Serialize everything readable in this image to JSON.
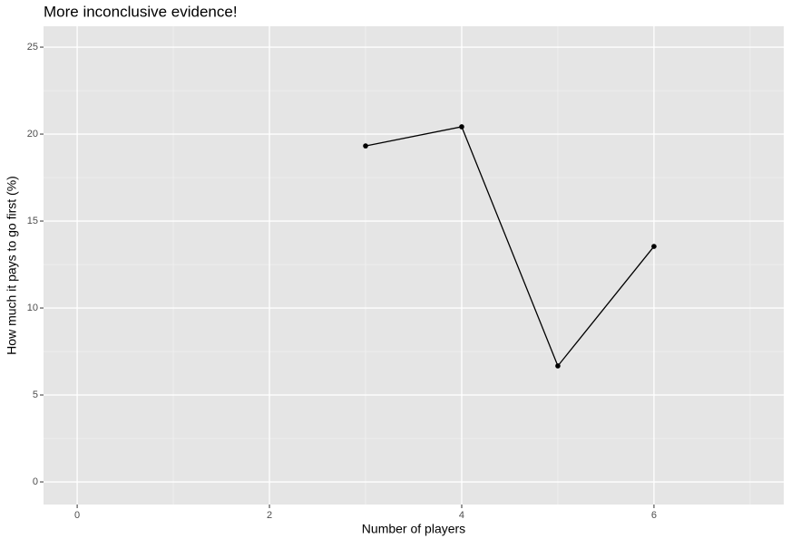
{
  "chart_data": {
    "type": "line",
    "title": "More inconclusive evidence!",
    "x_label": "Number of players",
    "y_label": "How much it pays to go first (%)",
    "x": [
      3,
      4,
      5,
      6
    ],
    "series": [
      {
        "name": "",
        "color": "#000000",
        "values": [
          19.32,
          20.42,
          6.67,
          13.54
        ]
      }
    ],
    "xlim": [
      -0.35,
      7.35
    ],
    "xticks": [
      0,
      2,
      4,
      6
    ],
    "ylim": [
      -1.3,
      26.2
    ],
    "yticks": [
      0,
      5,
      10,
      15,
      20,
      25
    ],
    "grid": true,
    "minor_grid": true
  }
}
